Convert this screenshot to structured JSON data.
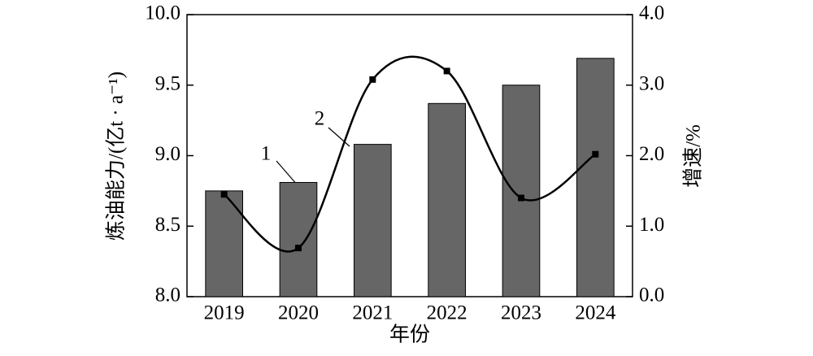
{
  "chart_data": {
    "type": "bar-line",
    "categories": [
      "2019",
      "2020",
      "2021",
      "2022",
      "2023",
      "2024"
    ],
    "x_label": "年份",
    "y_label": "炼油能力/(亿t · a⁻¹)",
    "y2_label": "增速/%",
    "series": [
      {
        "name": "1",
        "type": "bar",
        "color": "#666666",
        "values": [
          8.75,
          8.81,
          9.08,
          9.37,
          9.5,
          9.69
        ]
      },
      {
        "name": "2",
        "type": "line",
        "axis": "y2",
        "color": "#000000",
        "values": [
          1.45,
          0.69,
          3.08,
          3.2,
          1.4,
          2.02
        ]
      }
    ],
    "ylim": [
      8,
      10
    ],
    "yticks": [
      {
        "value": 8,
        "label": "8.0"
      },
      {
        "value": 8.5,
        "label": "8.5"
      },
      {
        "value": 9,
        "label": "9.0"
      },
      {
        "value": 9.5,
        "label": "9.5"
      },
      {
        "value": 10,
        "label": "10.0"
      }
    ],
    "y2lim": [
      0,
      4
    ],
    "y2ticks": [
      {
        "value": 0,
        "label": "0.0"
      },
      {
        "value": 1,
        "label": "1.0"
      },
      {
        "value": 2,
        "label": "2.0"
      },
      {
        "value": 3,
        "label": "3.0"
      },
      {
        "value": 4,
        "label": "4.0"
      }
    ]
  }
}
